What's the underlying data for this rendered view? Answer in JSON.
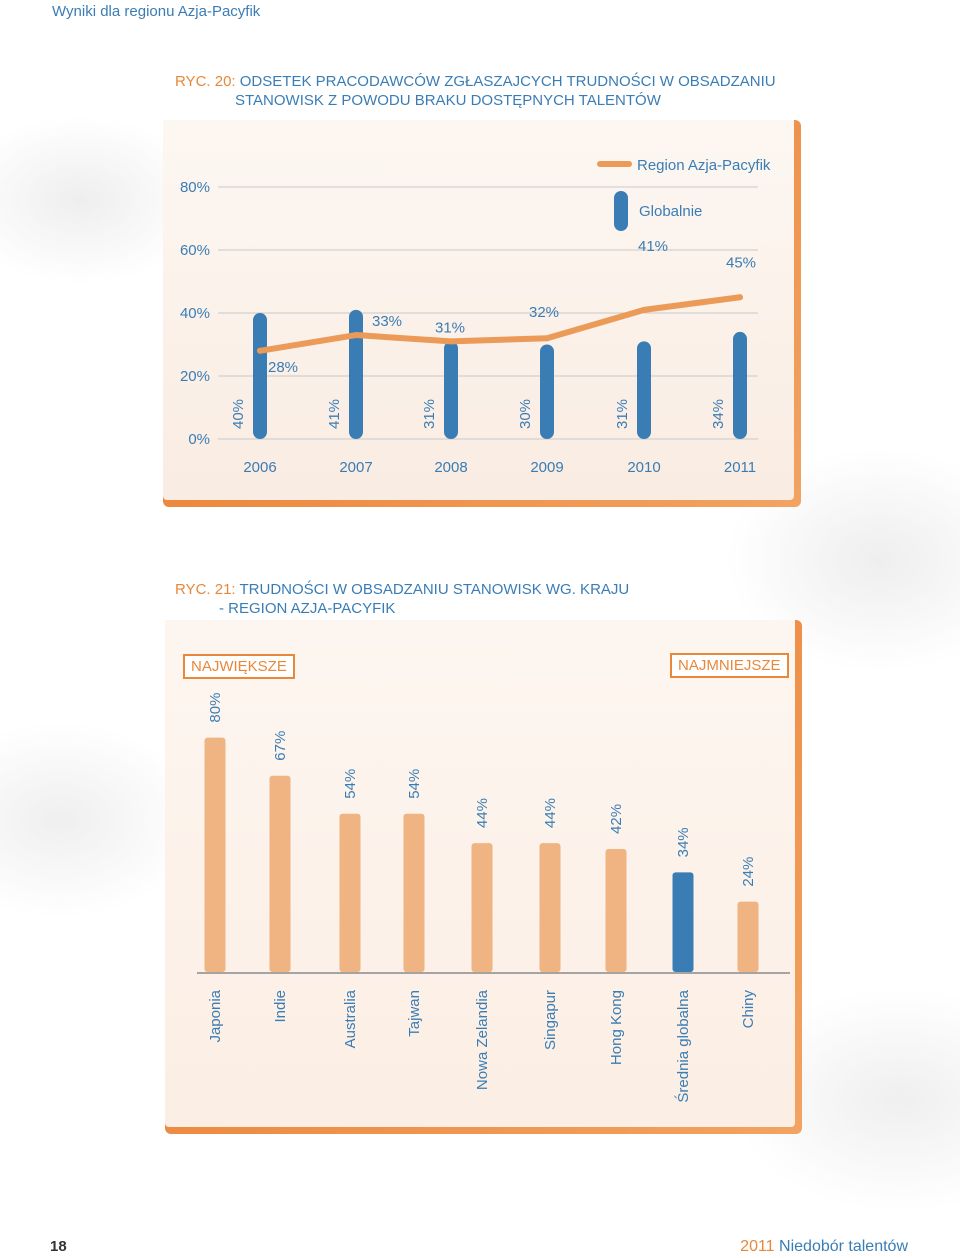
{
  "header": {
    "title": "Wyniki dla regionu Azja-Pacyfik"
  },
  "fig20": {
    "number": "RYC. 20:",
    "title_line1": "ODSETEK PRACODAWCÓW ZGŁASZAJCYCH TRUDNOŚCI W OBSADZANIU",
    "title_line2": "STANOWISK Z POWODU BRAKU DOSTĘPNYCH TALENTÓW"
  },
  "fig21": {
    "number": "RYC. 21:",
    "title_line1": "TRUDNOŚCI W OBSADZANIU STANOWISK WG. KRAJU",
    "title_line2": "- REGION AZJA-PACYFIK",
    "label_largest": "NAJWIĘKSZE",
    "label_smallest": "NAJMNIEJSZE"
  },
  "chart_data": [
    {
      "type": "bar",
      "title": "Odsetek pracodawców zgłaszajcych trudności w obsadzaniu stanowisk z powodu braku dostępnych talentów",
      "categories": [
        "2006",
        "2007",
        "2008",
        "2009",
        "2010",
        "2011"
      ],
      "y_tick_labels": [
        "0%",
        "20%",
        "40%",
        "60%",
        "80%"
      ],
      "ylim": [
        0,
        85
      ],
      "series": [
        {
          "name": "Region Azja-Pacyfik",
          "kind": "line",
          "values": [
            28,
            33,
            31,
            32,
            41,
            45
          ],
          "labels": [
            "28%",
            "33%",
            "31%",
            "32%",
            "41%",
            "45%"
          ],
          "color": "#e8944f"
        },
        {
          "name": "Globalnie",
          "kind": "bar",
          "values": [
            40,
            41,
            31,
            30,
            31,
            34
          ],
          "labels": [
            "40%",
            "41%",
            "31%",
            "30%",
            "31%",
            "34%"
          ],
          "color": "#3a7db5"
        }
      ],
      "legend": "top-right"
    },
    {
      "type": "bar",
      "title": "Trudności w obsadzaniu stanowisk wg. kraju - Region Azja-Pacyfik",
      "categories": [
        "Japonia",
        "Indie",
        "Australia",
        "Tajwan",
        "Nowa Zelandia",
        "Singapur",
        "Hong Kong",
        "Średnia globalna",
        "Chiny"
      ],
      "values": [
        80,
        67,
        54,
        54,
        44,
        44,
        42,
        34,
        24
      ],
      "labels": [
        "80%",
        "67%",
        "54%",
        "54%",
        "44%",
        "44%",
        "42%",
        "34%",
        "24%"
      ],
      "highlight_category": "Średnia globalna",
      "colors": {
        "bar": "#f0b482",
        "highlight": "#3a7db5"
      },
      "ylim": [
        0,
        80
      ]
    }
  ],
  "footer": {
    "page_number": "18",
    "year": "2011",
    "title": "Niedobór talentów"
  }
}
